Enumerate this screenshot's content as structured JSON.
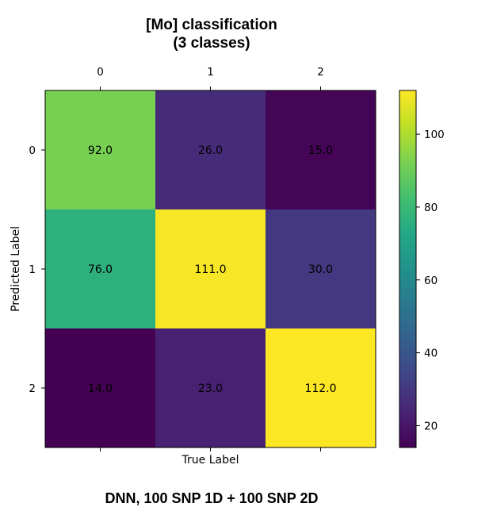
{
  "chart_data": {
    "type": "heatmap",
    "title_lines": [
      "[Mo] classification",
      "(3 classes)"
    ],
    "xlabel": "True Label",
    "ylabel": "Predicted Label",
    "x_categories": [
      "0",
      "1",
      "2"
    ],
    "y_categories": [
      "0",
      "1",
      "2"
    ],
    "x_ticks_position": "top",
    "values": [
      [
        92.0,
        26.0,
        15.0
      ],
      [
        76.0,
        111.0,
        30.0
      ],
      [
        14.0,
        23.0,
        112.0
      ]
    ],
    "value_labels": [
      [
        "92.0",
        "26.0",
        "15.0"
      ],
      [
        "76.0",
        "111.0",
        "30.0"
      ],
      [
        "14.0",
        "23.0",
        "112.0"
      ]
    ],
    "colormap": "viridis",
    "color_range": [
      14,
      112
    ],
    "colorbar_ticks": [
      20,
      40,
      60,
      80,
      100
    ],
    "colorbar_tick_labels": [
      "20",
      "40",
      "60",
      "80",
      "100"
    ],
    "caption": "DNN, 100 SNP 1D + 100 SNP 2D",
    "grid": false
  }
}
